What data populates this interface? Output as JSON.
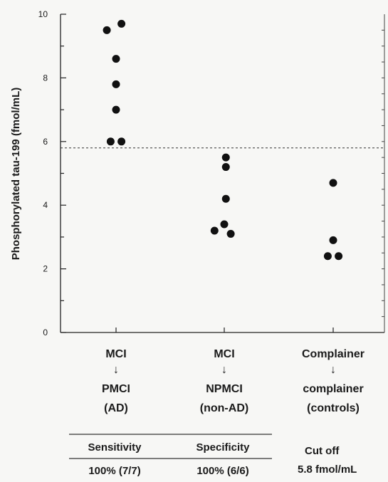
{
  "chart_data": {
    "type": "scatter",
    "ylabel": "Phosphorylated tau-199 (fmol/mL)",
    "ylim": [
      0,
      10
    ],
    "yticks": [
      0,
      2,
      4,
      6,
      8,
      10
    ],
    "ytick_labels": [
      "0",
      "2",
      "4",
      "6",
      "8",
      "10"
    ],
    "grid": false,
    "categories": [
      {
        "line1": "MCI",
        "arrow": "↓",
        "line2": "PMCI",
        "line3": "(AD)"
      },
      {
        "line1": "MCI",
        "arrow": "↓",
        "line2": "NPMCI",
        "line3": "(non-AD)"
      },
      {
        "line1": "Complainer",
        "arrow": "↓",
        "line2": "complainer",
        "line3": "(controls)"
      }
    ],
    "series": [
      {
        "category_index": 0,
        "points": [
          {
            "offset": -0.17,
            "y": 9.5
          },
          {
            "offset": 0.1,
            "y": 9.7
          },
          {
            "offset": 0.0,
            "y": 8.6
          },
          {
            "offset": 0.0,
            "y": 7.8
          },
          {
            "offset": 0.0,
            "y": 7.0
          },
          {
            "offset": -0.1,
            "y": 6.0
          },
          {
            "offset": 0.1,
            "y": 6.0
          }
        ]
      },
      {
        "category_index": 1,
        "points": [
          {
            "offset": 0.03,
            "y": 5.5
          },
          {
            "offset": 0.03,
            "y": 5.2
          },
          {
            "offset": 0.03,
            "y": 4.2
          },
          {
            "offset": -0.18,
            "y": 3.2
          },
          {
            "offset": 0.0,
            "y": 3.4
          },
          {
            "offset": 0.12,
            "y": 3.1
          }
        ]
      },
      {
        "category_index": 2,
        "points": [
          {
            "offset": 0.0,
            "y": 4.7
          },
          {
            "offset": 0.0,
            "y": 2.9
          },
          {
            "offset": -0.1,
            "y": 2.4
          },
          {
            "offset": 0.1,
            "y": 2.4
          }
        ]
      }
    ],
    "cutoff": {
      "value": 5.8,
      "style": "dashed"
    }
  },
  "stats": {
    "sensitivity_label": "Sensitivity",
    "specificity_label": "Specificity",
    "sensitivity_value": "100% (7/7)",
    "specificity_value": "100% (6/6)",
    "cutoff_label": "Cut off",
    "cutoff_value": "5.8 fmol/mL"
  }
}
